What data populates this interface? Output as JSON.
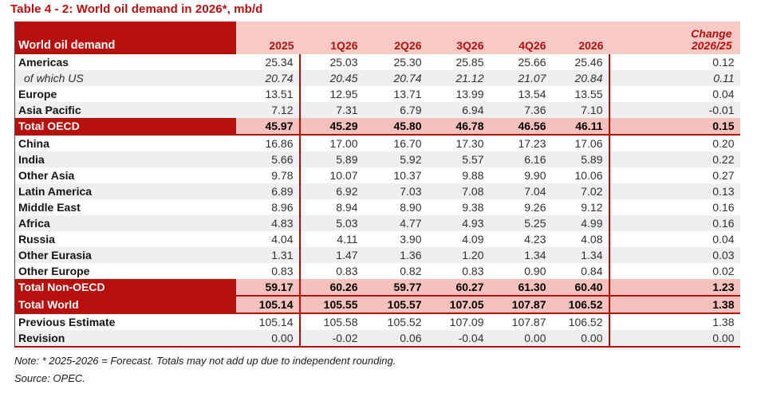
{
  "title": "Table 4 - 2: World oil demand in 2026*, mb/d",
  "colors": {
    "accent_red": "#B80F0D",
    "header_pink": "#F7CAC6",
    "total_pink": "#F5C1BC",
    "row_gray": "#EFEFEF",
    "table_edge_gray": "#4D4D4D"
  },
  "table": {
    "label_header": "World oil demand",
    "period_headers": [
      "2025",
      "1Q26",
      "2Q26",
      "3Q26",
      "4Q26",
      "2026"
    ],
    "change_header": {
      "line1": "Change",
      "line2": "2026/25"
    },
    "rows": [
      {
        "label": "Americas",
        "variant": "white",
        "values": [
          "25.34",
          "25.03",
          "25.30",
          "25.85",
          "25.66",
          "25.46",
          "0.12"
        ]
      },
      {
        "label": "of which US",
        "variant": "sub",
        "values": [
          "20.74",
          "20.45",
          "20.74",
          "21.12",
          "21.07",
          "20.84",
          "0.11"
        ]
      },
      {
        "label": "Europe",
        "variant": "white",
        "values": [
          "13.51",
          "12.95",
          "13.71",
          "13.99",
          "13.54",
          "13.55",
          "0.04"
        ]
      },
      {
        "label": "Asia Pacific",
        "variant": "gray",
        "values": [
          "7.12",
          "7.31",
          "6.79",
          "6.94",
          "7.36",
          "7.10",
          "-0.01"
        ]
      },
      {
        "label": "Total OECD",
        "variant": "total",
        "rule_below": true,
        "values": [
          "45.97",
          "45.29",
          "45.80",
          "46.78",
          "46.56",
          "46.11",
          "0.15"
        ]
      },
      {
        "label": "China",
        "variant": "white",
        "values": [
          "16.86",
          "17.00",
          "16.70",
          "17.30",
          "17.23",
          "17.06",
          "0.20"
        ]
      },
      {
        "label": "India",
        "variant": "gray",
        "values": [
          "5.66",
          "5.89",
          "5.92",
          "5.57",
          "6.16",
          "5.89",
          "0.22"
        ]
      },
      {
        "label": "Other Asia",
        "variant": "white",
        "values": [
          "9.78",
          "10.07",
          "10.37",
          "9.88",
          "9.90",
          "10.06",
          "0.27"
        ]
      },
      {
        "label": "Latin America",
        "variant": "gray",
        "values": [
          "6.89",
          "6.92",
          "7.03",
          "7.08",
          "7.04",
          "7.02",
          "0.13"
        ]
      },
      {
        "label": "Middle East",
        "variant": "white",
        "values": [
          "8.96",
          "8.94",
          "8.90",
          "9.38",
          "9.26",
          "9.12",
          "0.16"
        ]
      },
      {
        "label": "Africa",
        "variant": "gray",
        "values": [
          "4.83",
          "5.03",
          "4.77",
          "4.93",
          "5.25",
          "4.99",
          "0.16"
        ]
      },
      {
        "label": "Russia",
        "variant": "white",
        "values": [
          "4.04",
          "4.11",
          "3.90",
          "4.09",
          "4.23",
          "4.08",
          "0.04"
        ]
      },
      {
        "label": "Other Eurasia",
        "variant": "gray",
        "values": [
          "1.31",
          "1.47",
          "1.36",
          "1.20",
          "1.34",
          "1.34",
          "0.03"
        ]
      },
      {
        "label": "Other Europe",
        "variant": "white",
        "values": [
          "0.83",
          "0.83",
          "0.82",
          "0.83",
          "0.90",
          "0.84",
          "0.02"
        ]
      },
      {
        "label": "Total Non-OECD",
        "variant": "total",
        "rule_below": true,
        "values": [
          "59.17",
          "60.26",
          "59.77",
          "60.27",
          "61.30",
          "60.40",
          "1.23"
        ]
      },
      {
        "label": "Total World",
        "variant": "total",
        "rule_below": true,
        "values": [
          "105.14",
          "105.55",
          "105.57",
          "107.05",
          "107.87",
          "106.52",
          "1.38"
        ]
      },
      {
        "label": "Previous Estimate",
        "variant": "white",
        "values": [
          "105.14",
          "105.58",
          "105.52",
          "107.09",
          "107.87",
          "106.52",
          "1.38"
        ]
      },
      {
        "label": "Revision",
        "variant": "gray",
        "values": [
          "0.00",
          "-0.02",
          "0.06",
          "-0.04",
          "0.00",
          "0.00",
          "0.00"
        ]
      }
    ]
  },
  "footnotes": {
    "note": "Note: * 2025-2026 = Forecast. Totals may not add up due to independent rounding.",
    "source": "Source: OPEC."
  }
}
